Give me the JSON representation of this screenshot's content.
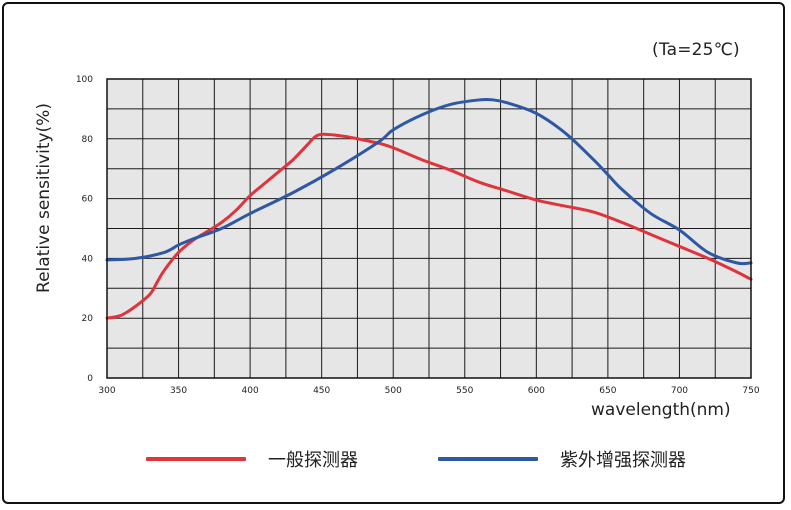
{
  "chart_data": {
    "type": "line",
    "title": "",
    "annotation": "(Ta=25℃)",
    "xlabel": "wavelength(nm)",
    "ylabel": "Relative sensitivity(%)",
    "xlim": [
      300,
      750
    ],
    "ylim": [
      0,
      100
    ],
    "xticks": [
      300,
      350,
      400,
      450,
      500,
      550,
      600,
      650,
      700,
      750
    ],
    "yticks": [
      0,
      20,
      40,
      60,
      80,
      100
    ],
    "grid": true,
    "legend_position": "bottom",
    "series": [
      {
        "name": "一般探测器",
        "color": "#e0333a",
        "x": [
          300,
          310,
          320,
          330,
          335,
          340,
          350,
          360,
          370,
          380,
          390,
          400,
          410,
          420,
          430,
          440,
          445,
          450,
          460,
          470,
          480,
          490,
          500,
          520,
          540,
          560,
          580,
          600,
          620,
          640,
          660,
          680,
          700,
          720,
          740,
          750
        ],
        "y": [
          20,
          21,
          24,
          28,
          32,
          36,
          42,
          46,
          49,
          52,
          56,
          61,
          65,
          69,
          73,
          78,
          80.5,
          81.5,
          81.2,
          80.5,
          79.5,
          78.5,
          77,
          73,
          69.5,
          65.5,
          62.5,
          59.5,
          57.5,
          55.5,
          52,
          48,
          44,
          40,
          35.5,
          33
        ]
      },
      {
        "name": "紫外增强探测器",
        "color": "#2e58a4",
        "x": [
          300,
          320,
          340,
          350,
          360,
          380,
          400,
          430,
          460,
          490,
          500,
          520,
          540,
          560,
          570,
          580,
          600,
          620,
          640,
          650,
          660,
          680,
          700,
          720,
          740,
          750
        ],
        "y": [
          39.5,
          40,
          42,
          44.5,
          46.5,
          50,
          55,
          62,
          70,
          79,
          83,
          88,
          91.5,
          93,
          93,
          92,
          88.5,
          82,
          73,
          68,
          63,
          55,
          49.5,
          42,
          38.5,
          38.5
        ]
      }
    ]
  }
}
